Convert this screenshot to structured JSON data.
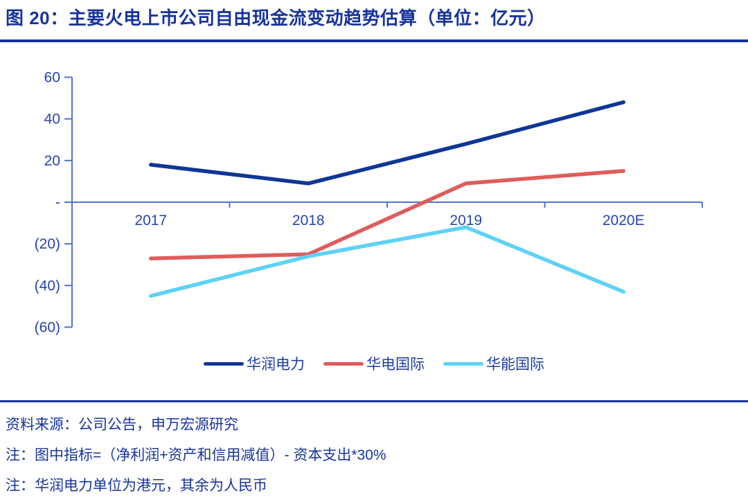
{
  "colors": {
    "title_blue": "#17349c",
    "axis_line_blue": "#4f74c9",
    "axis_label_blue": "#2445ad",
    "legend_text_blue": "#1b3ca3",
    "series_navy": "#0f3695",
    "series_red": "#e05c5c",
    "series_cyan": "#5ed2f7"
  },
  "chart_data": {
    "type": "line",
    "title": "图 20：主要火电上市公司自由现金流变动趋势估算（单位：亿元）",
    "unit": "亿元",
    "categories": [
      "2017",
      "2018",
      "2019",
      "2020E"
    ],
    "series": [
      {
        "name": "华润电力",
        "color": "#0f3695",
        "values": [
          18,
          9,
          28,
          48
        ]
      },
      {
        "name": "华电国际",
        "color": "#e05c5c",
        "values": [
          -27,
          -25,
          9,
          15
        ]
      },
      {
        "name": "华能国际",
        "color": "#5ed2f7",
        "values": [
          -45,
          -26,
          -12,
          -43
        ]
      }
    ],
    "ylim": [
      -60,
      60
    ],
    "yticks": [
      {
        "label": "60",
        "value": 60
      },
      {
        "label": "40",
        "value": 40
      },
      {
        "label": "20",
        "value": 20
      },
      {
        "label": "-",
        "value": 0
      },
      {
        "label": "(20)",
        "value": -20
      },
      {
        "label": "(40)",
        "value": -40
      },
      {
        "label": "(60)",
        "value": -60
      }
    ],
    "xlabel": "",
    "ylabel": "",
    "grid": false,
    "legend_position": "bottom",
    "negative_number_format": "parentheses"
  },
  "footer": {
    "source": "资料来源：公司公告，申万宏源研究",
    "note1": "注：图中指标=（净利润+资产和信用减值）- 资本支出*30%",
    "note2": "注：华润电力单位为港元，其余为人民币"
  }
}
